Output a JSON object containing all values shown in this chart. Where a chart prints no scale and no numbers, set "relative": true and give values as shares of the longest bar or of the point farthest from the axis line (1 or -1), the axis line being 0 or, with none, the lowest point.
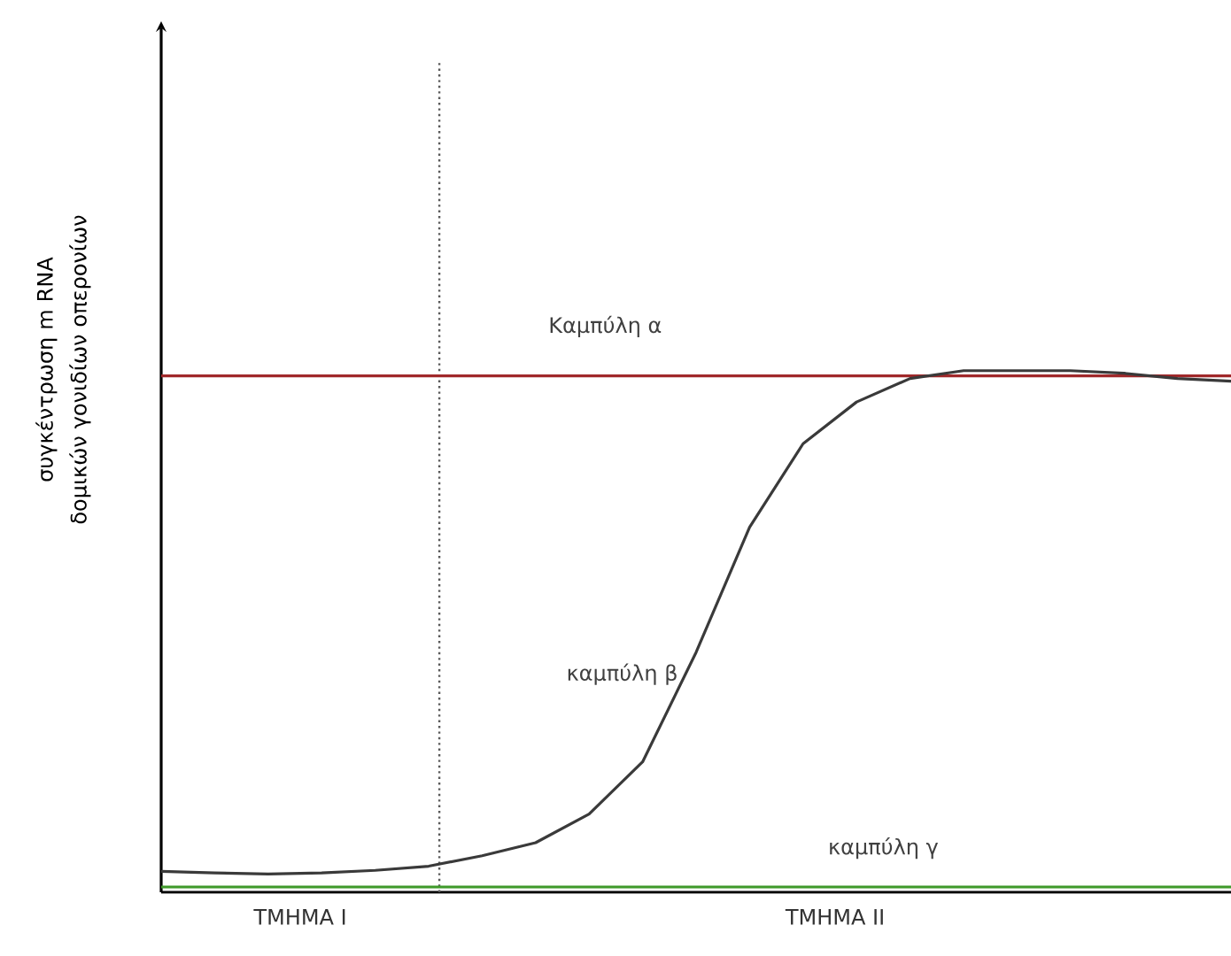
{
  "chart_data": {
    "type": "line",
    "relative": true,
    "ylabel": "συγκέντρωση  m RNA δομικών γονιδίων οπερονίων",
    "tick_labels": false,
    "categories": [
      null,
      null,
      null,
      null,
      null,
      null,
      null,
      null,
      null,
      null,
      null,
      null,
      null,
      null,
      null,
      null,
      null,
      null,
      null,
      null,
      null
    ],
    "series": [
      {
        "name": "Καμπύλη α",
        "color": "#a0282a",
        "values": [
          0.99,
          0.99,
          0.99,
          0.99,
          0.99,
          0.99,
          0.99,
          0.99,
          0.99,
          0.99,
          0.99,
          0.99,
          0.99,
          0.99,
          0.99,
          0.99,
          0.99,
          0.99,
          0.99,
          0.99,
          0.99
        ]
      },
      {
        "name": "καμπύλη β",
        "color": "#3a3a3a",
        "values": [
          0.04,
          0.037,
          0.035,
          0.037,
          0.042,
          0.05,
          0.07,
          0.095,
          0.15,
          0.25,
          0.46,
          0.7,
          0.86,
          0.94,
          0.985,
          1.0,
          1.0,
          1.0,
          0.995,
          0.985,
          0.98
        ]
      },
      {
        "name": "καμπύλη γ",
        "color": "#3f9a2a",
        "values": [
          0.01,
          0.01,
          0.01,
          0.01,
          0.01,
          0.01,
          0.01,
          0.01,
          0.01,
          0.01,
          0.01,
          0.01,
          0.01,
          0.01,
          0.01,
          0.01,
          0.01,
          0.01,
          0.01,
          0.01,
          0.01
        ]
      }
    ],
    "annotations": [
      "ΤΜΗΜΑ Ι",
      "ΤΜΗΜΑ ΙΙ"
    ]
  }
}
